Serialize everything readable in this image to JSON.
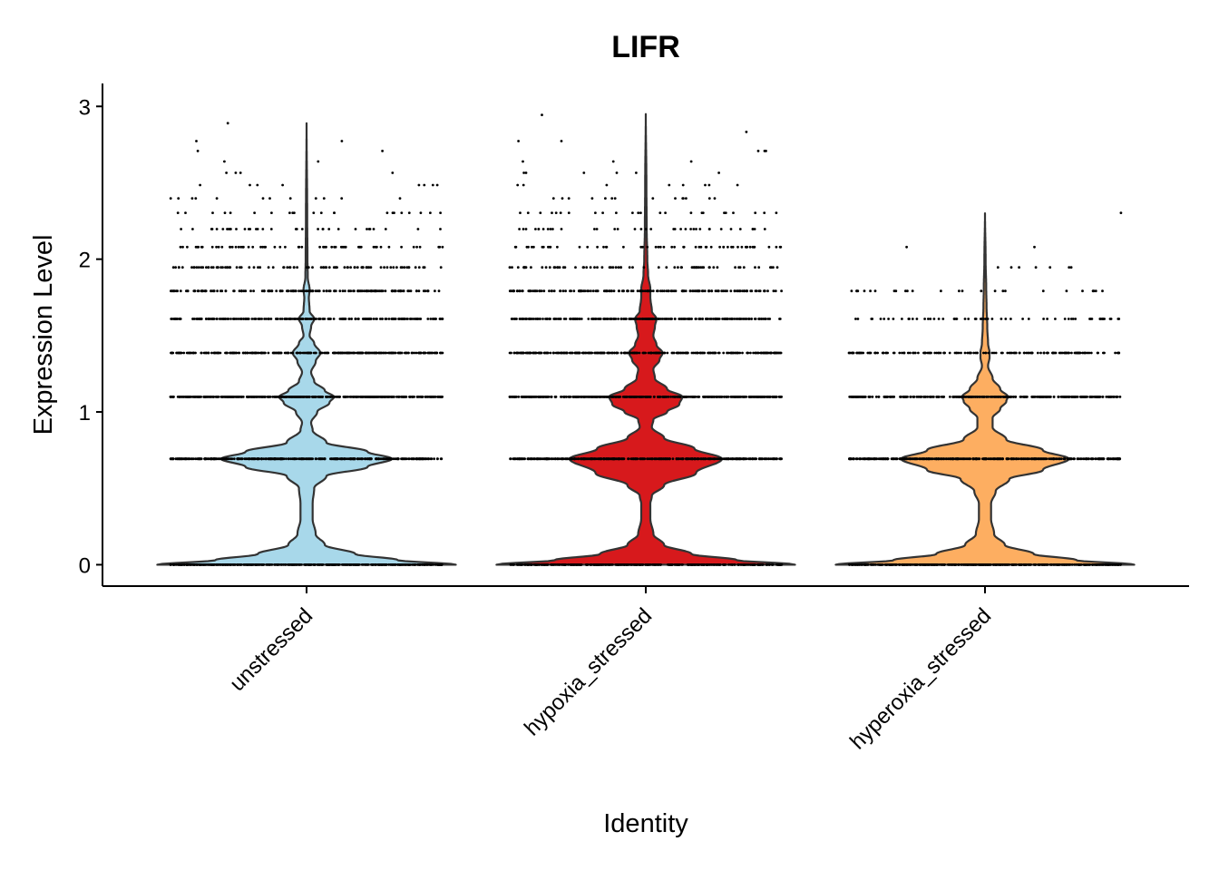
{
  "chart_data": {
    "type": "violin",
    "title": "LIFR",
    "xlabel": "Identity",
    "ylabel": "Expression Level",
    "ylim": [
      -0.14,
      3.15
    ],
    "yticks": [
      0,
      1,
      2,
      3
    ],
    "y_tick_labels": [
      "0",
      "1",
      "2",
      "3"
    ],
    "categories": [
      "unstressed",
      "hypoxia_stressed",
      "hyperoxia_stressed"
    ],
    "grid": false,
    "legend": "none",
    "point_levels": [
      0,
      0.693,
      1.099,
      1.386,
      1.609,
      1.792,
      1.946,
      2.079,
      2.197,
      2.303,
      2.398,
      2.485,
      2.565,
      2.639,
      2.708,
      2.773,
      2.833,
      2.89,
      2.944
    ],
    "series": [
      {
        "category": "unstressed",
        "fill": "#a8d8ea",
        "max": 2.89,
        "density_profile": [
          [
            0,
            0.98
          ],
          [
            0.03,
            0.6
          ],
          [
            0.07,
            0.32
          ],
          [
            0.13,
            0.12
          ],
          [
            0.2,
            0.06
          ],
          [
            0.3,
            0.04
          ],
          [
            0.4,
            0.04
          ],
          [
            0.5,
            0.05
          ],
          [
            0.58,
            0.13
          ],
          [
            0.64,
            0.4
          ],
          [
            0.693,
            0.56
          ],
          [
            0.74,
            0.4
          ],
          [
            0.8,
            0.13
          ],
          [
            0.88,
            0.04
          ],
          [
            0.93,
            0.03
          ],
          [
            1.0,
            0.07
          ],
          [
            1.06,
            0.15
          ],
          [
            1.099,
            0.18
          ],
          [
            1.14,
            0.12
          ],
          [
            1.2,
            0.05
          ],
          [
            1.26,
            0.03
          ],
          [
            1.33,
            0.06
          ],
          [
            1.386,
            0.09
          ],
          [
            1.45,
            0.05
          ],
          [
            1.5,
            0.02
          ],
          [
            1.56,
            0.03
          ],
          [
            1.609,
            0.05
          ],
          [
            1.66,
            0.02
          ],
          [
            1.75,
            0.015
          ],
          [
            1.8,
            0.02
          ],
          [
            1.88,
            0.008
          ],
          [
            2.0,
            0.006
          ],
          [
            2.3,
            0.004
          ],
          [
            2.89,
            0.0
          ]
        ],
        "jitter_counts": [
          400,
          400,
          400,
          300,
          240,
          160,
          90,
          60,
          34,
          22,
          12,
          8,
          4,
          2,
          2,
          2,
          0,
          1,
          0
        ]
      },
      {
        "category": "hypoxia_stressed",
        "fill": "#d7191c",
        "max": 2.95,
        "density_profile": [
          [
            0,
            0.98
          ],
          [
            0.03,
            0.6
          ],
          [
            0.07,
            0.3
          ],
          [
            0.13,
            0.12
          ],
          [
            0.2,
            0.05
          ],
          [
            0.3,
            0.03
          ],
          [
            0.4,
            0.03
          ],
          [
            0.45,
            0.04
          ],
          [
            0.52,
            0.12
          ],
          [
            0.6,
            0.33
          ],
          [
            0.693,
            0.5
          ],
          [
            0.76,
            0.32
          ],
          [
            0.83,
            0.12
          ],
          [
            0.9,
            0.04
          ],
          [
            0.95,
            0.05
          ],
          [
            1.0,
            0.14
          ],
          [
            1.05,
            0.22
          ],
          [
            1.099,
            0.24
          ],
          [
            1.15,
            0.14
          ],
          [
            1.22,
            0.06
          ],
          [
            1.28,
            0.05
          ],
          [
            1.34,
            0.09
          ],
          [
            1.386,
            0.11
          ],
          [
            1.44,
            0.07
          ],
          [
            1.5,
            0.05
          ],
          [
            1.56,
            0.06
          ],
          [
            1.609,
            0.07
          ],
          [
            1.66,
            0.04
          ],
          [
            1.75,
            0.03
          ],
          [
            1.8,
            0.03
          ],
          [
            1.9,
            0.015
          ],
          [
            2.0,
            0.01
          ],
          [
            2.2,
            0.006
          ],
          [
            2.5,
            0.004
          ],
          [
            2.95,
            0.0
          ]
        ],
        "jitter_counts": [
          400,
          400,
          400,
          300,
          240,
          160,
          70,
          55,
          36,
          24,
          14,
          8,
          6,
          3,
          3,
          2,
          1,
          0,
          1
        ]
      },
      {
        "category": "hyperoxia_stressed",
        "fill": "#fdae61",
        "max": 2.3,
        "density_profile": [
          [
            0,
            0.98
          ],
          [
            0.03,
            0.6
          ],
          [
            0.07,
            0.32
          ],
          [
            0.13,
            0.13
          ],
          [
            0.2,
            0.06
          ],
          [
            0.3,
            0.04
          ],
          [
            0.4,
            0.04
          ],
          [
            0.48,
            0.07
          ],
          [
            0.56,
            0.16
          ],
          [
            0.62,
            0.38
          ],
          [
            0.693,
            0.55
          ],
          [
            0.75,
            0.38
          ],
          [
            0.82,
            0.14
          ],
          [
            0.9,
            0.05
          ],
          [
            0.96,
            0.05
          ],
          [
            1.02,
            0.1
          ],
          [
            1.07,
            0.14
          ],
          [
            1.099,
            0.15
          ],
          [
            1.15,
            0.1
          ],
          [
            1.22,
            0.05
          ],
          [
            1.3,
            0.02
          ],
          [
            1.36,
            0.03
          ],
          [
            1.386,
            0.03
          ],
          [
            1.45,
            0.02
          ],
          [
            1.55,
            0.015
          ],
          [
            1.7,
            0.01
          ],
          [
            1.8,
            0.008
          ],
          [
            2.0,
            0.004
          ],
          [
            2.3,
            0.0
          ]
        ],
        "jitter_counts": [
          400,
          400,
          320,
          160,
          60,
          26,
          7,
          2,
          0,
          1,
          0,
          0,
          0,
          0,
          0,
          0,
          0,
          0,
          0
        ]
      }
    ]
  }
}
